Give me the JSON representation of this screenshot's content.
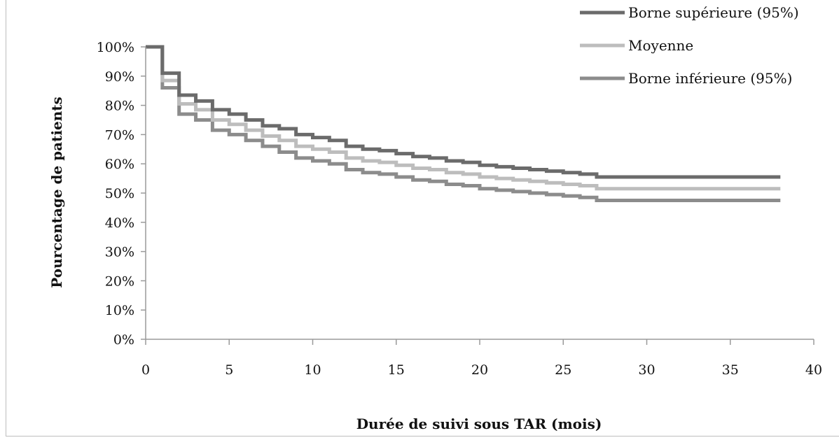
{
  "chart_data": {
    "type": "line",
    "step": true,
    "xlabel": "Durée de suivi sous TAR (mois)",
    "ylabel": "Pourcentage de patients",
    "xlim": [
      0,
      40
    ],
    "ylim": [
      0,
      100
    ],
    "x_ticks": [
      "0",
      "5",
      "10",
      "15",
      "20",
      "25",
      "30",
      "35",
      "40"
    ],
    "y_ticks": [
      "0%",
      "10%",
      "20%",
      "30%",
      "40%",
      "50%",
      "60%",
      "70%",
      "80%",
      "90%",
      "100%"
    ],
    "grid": false,
    "legend_position": "top-right",
    "series": [
      {
        "name": "Borne supérieure (95%)",
        "color": "#6b6b6b",
        "x": [
          0,
          1,
          2,
          3,
          4,
          5,
          6,
          7,
          8,
          9,
          10,
          11,
          12,
          13,
          14,
          15,
          16,
          17,
          18,
          19,
          20,
          21,
          22,
          23,
          24,
          25,
          26,
          27,
          38
        ],
        "y": [
          100,
          91,
          83.5,
          81.5,
          78.5,
          77,
          75,
          73,
          72,
          70,
          69,
          68,
          66,
          65,
          64.5,
          63.5,
          62.5,
          62,
          61,
          60.5,
          59.5,
          59,
          58.5,
          58,
          57.5,
          57,
          56.5,
          55.5,
          55.5
        ]
      },
      {
        "name": "Moyenne",
        "color": "#bdbdbd",
        "x": [
          0,
          1,
          2,
          3,
          4,
          5,
          6,
          7,
          8,
          9,
          10,
          11,
          12,
          13,
          14,
          15,
          16,
          17,
          18,
          19,
          20,
          21,
          22,
          23,
          24,
          25,
          26,
          27,
          38
        ],
        "y": [
          100,
          88.5,
          80.5,
          78.5,
          75,
          73.5,
          71.5,
          69.5,
          68,
          66,
          65,
          64,
          62,
          61,
          60.5,
          59.5,
          58.5,
          58,
          57,
          56.5,
          55.5,
          55,
          54.5,
          54,
          53.5,
          53,
          52.5,
          51.5,
          51.5
        ]
      },
      {
        "name": "Borne inférieure (95%)",
        "color": "#8c8c8c",
        "x": [
          0,
          1,
          2,
          3,
          4,
          5,
          6,
          7,
          8,
          9,
          10,
          11,
          12,
          13,
          14,
          15,
          16,
          17,
          18,
          19,
          20,
          21,
          22,
          23,
          24,
          25,
          26,
          27,
          38
        ],
        "y": [
          100,
          86,
          77,
          75,
          71.5,
          70,
          68,
          66,
          64,
          62,
          61,
          60,
          58,
          57,
          56.5,
          55.5,
          54.5,
          54,
          53,
          52.5,
          51.5,
          51,
          50.5,
          50,
          49.5,
          49,
          48.5,
          47.5,
          47.5
        ]
      }
    ]
  }
}
